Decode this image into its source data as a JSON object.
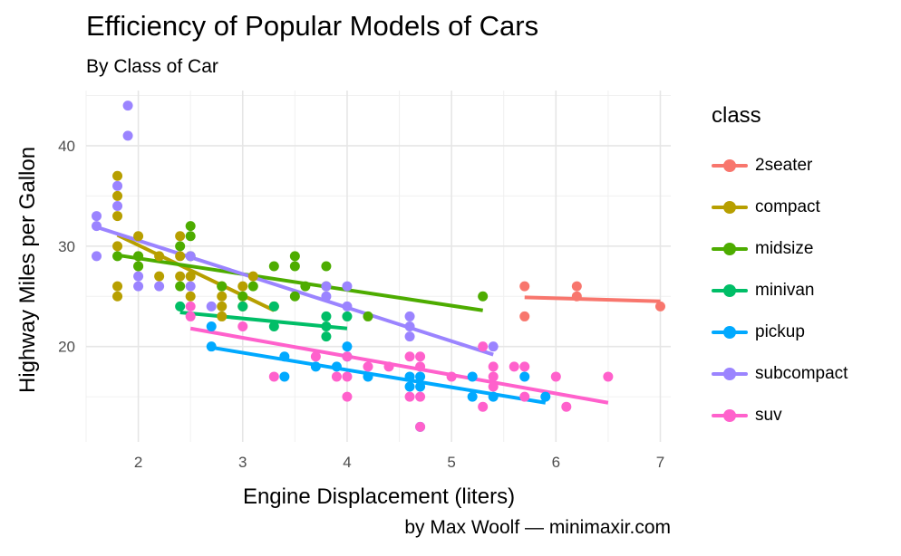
{
  "chart_data": {
    "type": "scatter",
    "title": "Efficiency of Popular Models of Cars",
    "subtitle": "By Class of Car",
    "caption": "by Max Woolf — minimaxir.com",
    "xlabel": "Engine Displacement (liters)",
    "ylabel": "Highway Miles per Gallon",
    "xlim": [
      1.5,
      7.1
    ],
    "ylim": [
      10.5,
      45.5
    ],
    "xticks": [
      2,
      3,
      4,
      5,
      6,
      7
    ],
    "yticks": [
      20,
      30,
      40
    ],
    "grid": true,
    "legend_title": "class",
    "legend_position": "right",
    "series": [
      {
        "name": "2seater",
        "color": "#F8766D",
        "points": [
          [
            5.7,
            26
          ],
          [
            5.7,
            23
          ],
          [
            6.2,
            26
          ],
          [
            6.2,
            25
          ],
          [
            7.0,
            24
          ]
        ],
        "trend": [
          [
            5.7,
            24.9
          ],
          [
            7.0,
            24.5
          ]
        ]
      },
      {
        "name": "compact",
        "color": "#B79F00",
        "points": [
          [
            1.8,
            37
          ],
          [
            1.8,
            35
          ],
          [
            1.8,
            33
          ],
          [
            1.8,
            30
          ],
          [
            1.8,
            26
          ],
          [
            1.8,
            25
          ],
          [
            2.0,
            31
          ],
          [
            2.0,
            29
          ],
          [
            2.0,
            28
          ],
          [
            2.2,
            27
          ],
          [
            2.2,
            29
          ],
          [
            2.4,
            31
          ],
          [
            2.4,
            27
          ],
          [
            2.4,
            29
          ],
          [
            2.5,
            27
          ],
          [
            2.5,
            25
          ],
          [
            2.8,
            26
          ],
          [
            2.8,
            25
          ],
          [
            2.8,
            24
          ],
          [
            2.8,
            23
          ],
          [
            3.0,
            26
          ],
          [
            3.0,
            24
          ],
          [
            3.1,
            27
          ],
          [
            3.3,
            24
          ]
        ],
        "trend": [
          [
            1.8,
            31.1
          ],
          [
            3.3,
            23.6
          ]
        ]
      },
      {
        "name": "midsize",
        "color": "#4DAC00",
        "points": [
          [
            1.8,
            29
          ],
          [
            2.0,
            28
          ],
          [
            2.0,
            29
          ],
          [
            2.4,
            30
          ],
          [
            2.4,
            26
          ],
          [
            2.5,
            31
          ],
          [
            2.5,
            32
          ],
          [
            2.5,
            29
          ],
          [
            2.8,
            26
          ],
          [
            3.0,
            25
          ],
          [
            3.1,
            26
          ],
          [
            3.3,
            28
          ],
          [
            3.5,
            29
          ],
          [
            3.5,
            28
          ],
          [
            3.5,
            25
          ],
          [
            3.6,
            26
          ],
          [
            3.8,
            28
          ],
          [
            3.8,
            26
          ],
          [
            4.2,
            23
          ],
          [
            5.3,
            25
          ]
        ],
        "trend": [
          [
            1.8,
            29.1
          ],
          [
            5.3,
            23.6
          ]
        ]
      },
      {
        "name": "minivan",
        "color": "#00BE67",
        "points": [
          [
            2.4,
            24
          ],
          [
            3.0,
            24
          ],
          [
            3.3,
            22
          ],
          [
            3.3,
            24
          ],
          [
            3.8,
            21
          ],
          [
            3.8,
            22
          ],
          [
            3.8,
            23
          ],
          [
            4.0,
            23
          ]
        ],
        "trend": [
          [
            2.4,
            23.4
          ],
          [
            4.0,
            21.8
          ]
        ]
      },
      {
        "name": "pickup",
        "color": "#00A9FF",
        "points": [
          [
            2.7,
            20
          ],
          [
            2.7,
            22
          ],
          [
            3.4,
            17
          ],
          [
            3.4,
            19
          ],
          [
            3.7,
            18
          ],
          [
            3.9,
            18
          ],
          [
            4.0,
            20
          ],
          [
            4.0,
            19
          ],
          [
            4.2,
            17
          ],
          [
            4.6,
            17
          ],
          [
            4.6,
            16
          ],
          [
            4.7,
            17
          ],
          [
            4.7,
            16
          ],
          [
            4.7,
            12
          ],
          [
            5.2,
            17
          ],
          [
            5.2,
            15
          ],
          [
            5.4,
            15
          ],
          [
            5.7,
            17
          ],
          [
            5.9,
            15
          ]
        ],
        "trend": [
          [
            2.7,
            19.9
          ],
          [
            5.9,
            14.4
          ]
        ]
      },
      {
        "name": "subcompact",
        "color": "#9B84FF",
        "points": [
          [
            1.6,
            33
          ],
          [
            1.6,
            32
          ],
          [
            1.6,
            29
          ],
          [
            1.8,
            34
          ],
          [
            1.8,
            36
          ],
          [
            1.9,
            44
          ],
          [
            1.9,
            41
          ],
          [
            2.0,
            26
          ],
          [
            2.0,
            27
          ],
          [
            2.2,
            26
          ],
          [
            2.5,
            26
          ],
          [
            2.5,
            29
          ],
          [
            2.7,
            24
          ],
          [
            3.8,
            25
          ],
          [
            3.8,
            26
          ],
          [
            4.0,
            26
          ],
          [
            4.0,
            24
          ],
          [
            4.6,
            23
          ],
          [
            4.6,
            22
          ],
          [
            4.6,
            21
          ],
          [
            5.4,
            20
          ]
        ],
        "trend": [
          [
            1.6,
            31.9
          ],
          [
            5.4,
            19.2
          ]
        ]
      },
      {
        "name": "suv",
        "color": "#FF61CC",
        "points": [
          [
            2.5,
            24
          ],
          [
            2.5,
            23
          ],
          [
            3.0,
            22
          ],
          [
            3.3,
            17
          ],
          [
            3.7,
            19
          ],
          [
            3.9,
            17
          ],
          [
            4.0,
            15
          ],
          [
            4.0,
            17
          ],
          [
            4.0,
            19
          ],
          [
            4.2,
            18
          ],
          [
            4.4,
            18
          ],
          [
            4.6,
            19
          ],
          [
            4.6,
            15
          ],
          [
            4.7,
            19
          ],
          [
            4.7,
            15
          ],
          [
            4.7,
            12
          ],
          [
            4.7,
            18
          ],
          [
            5.0,
            17
          ],
          [
            5.3,
            14
          ],
          [
            5.3,
            20
          ],
          [
            5.4,
            18
          ],
          [
            5.4,
            16
          ],
          [
            5.4,
            17
          ],
          [
            5.6,
            18
          ],
          [
            5.7,
            18
          ],
          [
            5.7,
            15
          ],
          [
            6.0,
            17
          ],
          [
            6.1,
            14
          ],
          [
            6.5,
            17
          ]
        ],
        "trend": [
          [
            2.5,
            21.8
          ],
          [
            6.5,
            14.4
          ]
        ]
      }
    ]
  }
}
